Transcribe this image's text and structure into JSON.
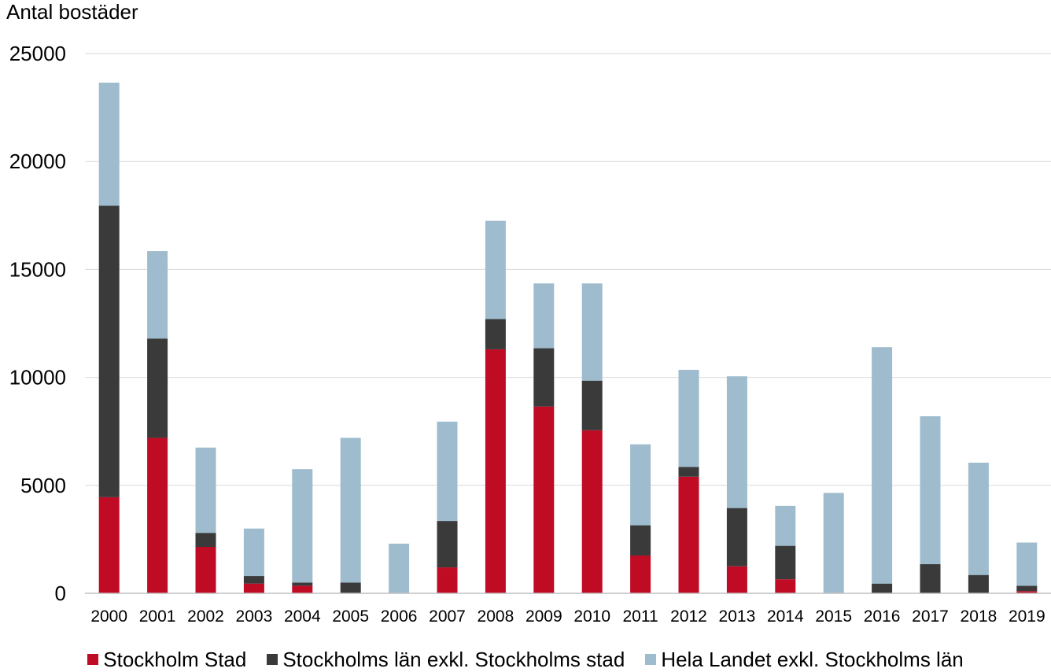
{
  "chart_data": {
    "type": "bar",
    "stacked": true,
    "title": "",
    "ylabel": "Antal bostäder",
    "xlabel": "",
    "ylim": [
      0,
      25000
    ],
    "yticks": [
      "0",
      "5000",
      "10000",
      "15000",
      "20000",
      "25000"
    ],
    "grid": true,
    "legend_position": "bottom",
    "categories": [
      "2000",
      "2001",
      "2002",
      "2003",
      "2004",
      "2005",
      "2006",
      "2007",
      "2008",
      "2009",
      "2010",
      "2011",
      "2012",
      "2013",
      "2014",
      "2015",
      "2016",
      "2017",
      "2018",
      "2019"
    ],
    "series": [
      {
        "name": "Stockholm Stad",
        "color": "#c00b24",
        "values": [
          4450,
          7200,
          2150,
          450,
          350,
          0,
          0,
          1200,
          11300,
          8650,
          7550,
          1750,
          5400,
          1250,
          650,
          0,
          0,
          0,
          0,
          100
        ]
      },
      {
        "name": "Stockholms län exkl. Stockholms stad",
        "color": "#3a3a3a",
        "values": [
          13500,
          4600,
          650,
          350,
          150,
          500,
          0,
          2150,
          1400,
          2700,
          2300,
          1400,
          450,
          2700,
          1550,
          0,
          450,
          1350,
          850,
          250
        ]
      },
      {
        "name": "Hela Landet exkl. Stockholms län",
        "color": "#9ebccd",
        "values": [
          5700,
          4050,
          3950,
          2200,
          5250,
          6700,
          2300,
          4600,
          4550,
          3000,
          4500,
          3750,
          4500,
          6100,
          1850,
          4650,
          10950,
          6850,
          5200,
          2000
        ]
      }
    ]
  }
}
